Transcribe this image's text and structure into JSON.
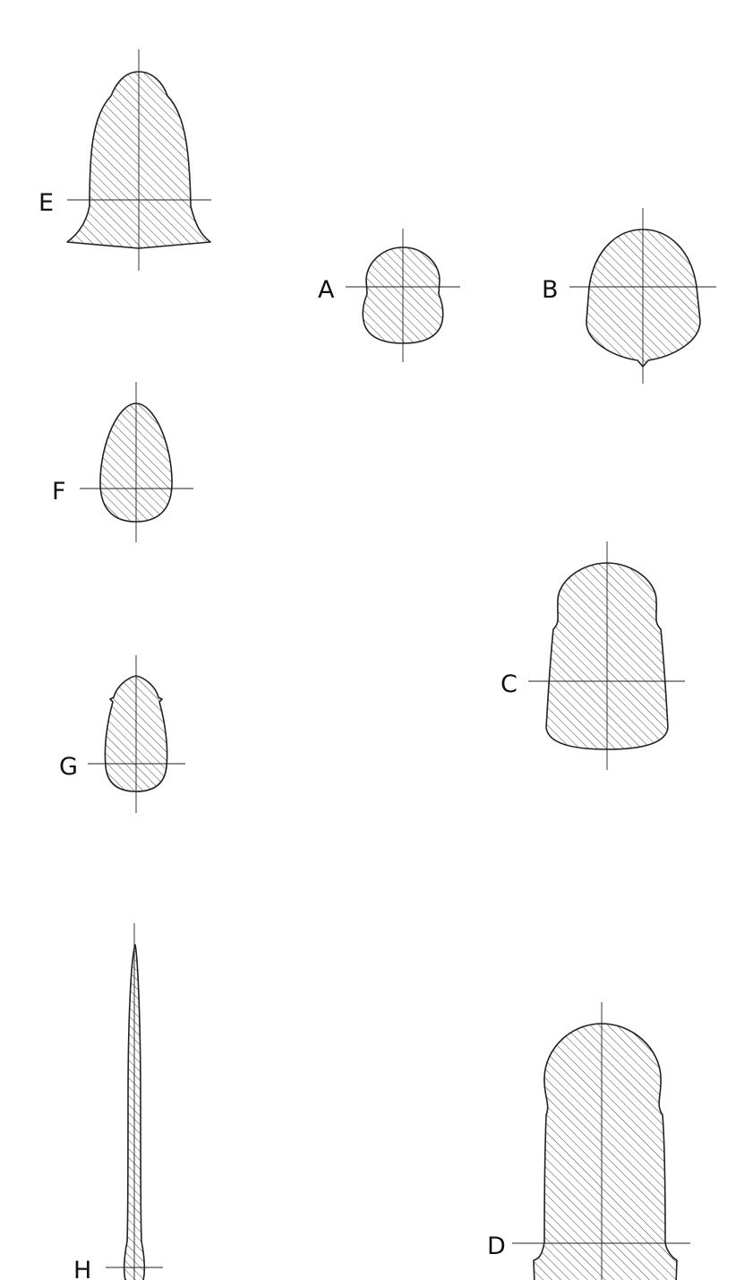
{
  "figure": {
    "sections": [
      {
        "id": "a",
        "label": "A"
      },
      {
        "id": "b",
        "label": "B"
      },
      {
        "id": "c",
        "label": "C"
      },
      {
        "id": "d",
        "label": "D"
      },
      {
        "id": "e",
        "label": "E"
      },
      {
        "id": "f",
        "label": "F"
      },
      {
        "id": "g",
        "label": "G"
      },
      {
        "id": "h",
        "label": "H"
      }
    ]
  }
}
